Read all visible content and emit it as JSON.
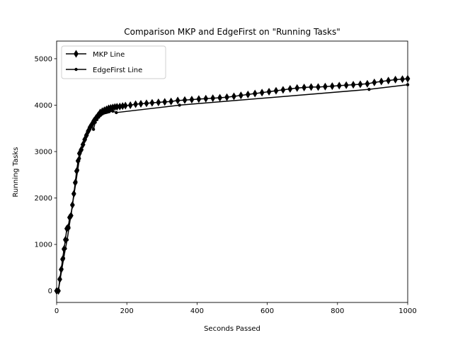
{
  "chart_data": {
    "type": "line",
    "title": "Comparison MKP and EdgeFirst on \"Running Tasks\"",
    "xlabel": "Seconds Passed",
    "ylabel": "Running Tasks",
    "xlim": [
      0,
      1000
    ],
    "ylim": [
      -250,
      5380
    ],
    "x_ticks": [
      0,
      200,
      400,
      600,
      800,
      1000
    ],
    "y_ticks": [
      0,
      1000,
      2000,
      3000,
      4000,
      5000
    ],
    "grid": false,
    "legend_position": "upper-left",
    "series": [
      {
        "name": "MKP Line",
        "marker": "diamond",
        "color": "#000000",
        "x": [
          0,
          5,
          9,
          13,
          17,
          21,
          25,
          29,
          33,
          37,
          41,
          45,
          49,
          53,
          57,
          61,
          65,
          70,
          75,
          80,
          85,
          90,
          95,
          100,
          106,
          112,
          118,
          124,
          130,
          136,
          142,
          148,
          154,
          160,
          166,
          172,
          180,
          188,
          196,
          210,
          225,
          240,
          256,
          272,
          290,
          308,
          326,
          345,
          365,
          385,
          405,
          425,
          445,
          465,
          485,
          505,
          525,
          545,
          565,
          585,
          605,
          625,
          645,
          665,
          685,
          705,
          725,
          745,
          765,
          785,
          805,
          825,
          845,
          865,
          885,
          905,
          925,
          945,
          965,
          985,
          1000
        ],
        "y": [
          0,
          0,
          250,
          460,
          680,
          900,
          1100,
          1340,
          1370,
          1580,
          1620,
          1850,
          2090,
          2330,
          2580,
          2800,
          2960,
          3040,
          3150,
          3260,
          3350,
          3440,
          3520,
          3580,
          3660,
          3720,
          3780,
          3840,
          3870,
          3890,
          3910,
          3930,
          3940,
          3950,
          3960,
          3965,
          3970,
          3980,
          3990,
          4000,
          4020,
          4030,
          4040,
          4050,
          4060,
          4070,
          4080,
          4100,
          4110,
          4120,
          4130,
          4140,
          4150,
          4160,
          4170,
          4190,
          4210,
          4230,
          4250,
          4270,
          4290,
          4310,
          4330,
          4350,
          4370,
          4380,
          4390,
          4390,
          4400,
          4410,
          4420,
          4430,
          4440,
          4450,
          4460,
          4490,
          4510,
          4530,
          4550,
          4560,
          4570
        ]
      },
      {
        "name": "EdgeFirst Line",
        "marker": "dot",
        "color": "#000000",
        "x": [
          0,
          5,
          10,
          15,
          20,
          25,
          30,
          35,
          40,
          45,
          50,
          55,
          60,
          65,
          70,
          75,
          80,
          85,
          90,
          95,
          100,
          105,
          110,
          115,
          120,
          125,
          130,
          135,
          140,
          145,
          150,
          160,
          170,
          350,
          890,
          1000
        ],
        "y": [
          0,
          0,
          250,
          470,
          700,
          910,
          1100,
          1350,
          1600,
          1850,
          2100,
          2350,
          2600,
          2850,
          3020,
          3140,
          3250,
          3340,
          3420,
          3480,
          3540,
          3480,
          3630,
          3690,
          3740,
          3780,
          3810,
          3830,
          3840,
          3850,
          3860,
          3870,
          3840,
          4000,
          4340,
          4440
        ]
      }
    ]
  }
}
